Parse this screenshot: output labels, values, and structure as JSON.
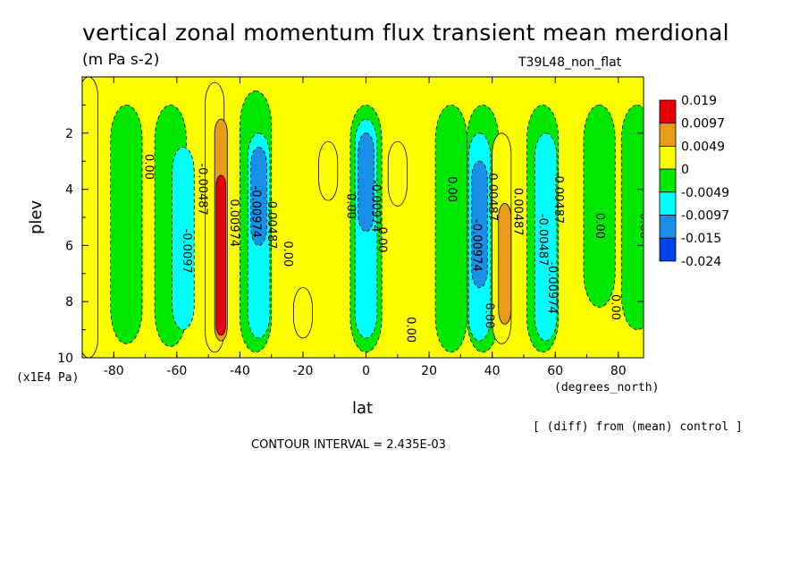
{
  "title": "vertical zonal momentum flux transient mean merdional",
  "units": "(m Pa s-2)",
  "run_id": "T39L48_non_flat",
  "y_axis_unit": "(x1E4 Pa)",
  "x_axis_unit": "(degrees_north)",
  "diff_note": "[ (diff) from (mean) control ]",
  "contour_interval": "CONTOUR INTERVAL = 2.435E-03",
  "chart_data": {
    "type": "heatmap",
    "title": "vertical zonal momentum flux transient mean merdional",
    "xlabel": "lat",
    "ylabel": "plev",
    "xlim": [
      -90,
      88
    ],
    "ylim": [
      10,
      0
    ],
    "x_ticks": [
      -80,
      -60,
      -40,
      -20,
      0,
      20,
      40,
      60,
      80
    ],
    "x_tick_labels": [
      "-80",
      "-60",
      "-40",
      "-20",
      "0",
      "20",
      "40",
      "60",
      "80"
    ],
    "y_ticks": [
      2,
      4,
      6,
      8,
      10
    ],
    "y_tick_labels": [
      "2",
      "4",
      "6",
      "8",
      "10"
    ],
    "legend": {
      "position": "right",
      "labels": [
        "0.019",
        "0.0097",
        "0.0049",
        "0",
        "-0.0049",
        "-0.0097",
        "-0.015",
        "-0.024"
      ],
      "colors": [
        "#e8000b",
        "#e89a1a",
        "#ffff00",
        "#00e800",
        "#00ffff",
        "#1a8fe8",
        "#0044e8"
      ]
    },
    "bands": [
      {
        "lat": -88,
        "top": 0.0,
        "bottom": 10,
        "value": "0"
      },
      {
        "lat": -76,
        "top": 1.0,
        "bottom": 9.5,
        "value": "-0.0049"
      },
      {
        "lat": -62,
        "top": 1.0,
        "bottom": 9.6,
        "value": "-0.0049"
      },
      {
        "lat": -58,
        "top": 2.5,
        "bottom": 9.0,
        "value": "-0.0097"
      },
      {
        "lat": -48,
        "top": 0.2,
        "bottom": 9.8,
        "value": "0.0049"
      },
      {
        "lat": -46,
        "top": 1.5,
        "bottom": 9.4,
        "value": "0.0097"
      },
      {
        "lat": -46,
        "top": 3.5,
        "bottom": 9.2,
        "value": "0.019"
      },
      {
        "lat": -35,
        "top": 0.5,
        "bottom": 9.8,
        "value": "-0.0049"
      },
      {
        "lat": -34,
        "top": 2.0,
        "bottom": 9.3,
        "value": "-0.0097"
      },
      {
        "lat": -34,
        "top": 2.5,
        "bottom": 6.0,
        "value": "-0.015"
      },
      {
        "lat": -12,
        "top": 2.3,
        "bottom": 4.4,
        "value": "0.0049"
      },
      {
        "lat": -20,
        "top": 7.5,
        "bottom": 9.3,
        "value": "0.0049"
      },
      {
        "lat": 0,
        "top": 1.0,
        "bottom": 9.8,
        "value": "-0.0049"
      },
      {
        "lat": 0,
        "top": 1.5,
        "bottom": 9.3,
        "value": "-0.0097"
      },
      {
        "lat": 0,
        "top": 2.0,
        "bottom": 5.5,
        "value": "-0.015"
      },
      {
        "lat": 10,
        "top": 2.3,
        "bottom": 4.6,
        "value": "0.0049"
      },
      {
        "lat": 27,
        "top": 1.0,
        "bottom": 9.8,
        "value": "-0.0049"
      },
      {
        "lat": 37,
        "top": 1.0,
        "bottom": 9.8,
        "value": "-0.0049"
      },
      {
        "lat": 36,
        "top": 2.0,
        "bottom": 9.4,
        "value": "-0.0097"
      },
      {
        "lat": 36,
        "top": 3.0,
        "bottom": 7.5,
        "value": "-0.015"
      },
      {
        "lat": 43,
        "top": 2.0,
        "bottom": 9.5,
        "value": "0.0049"
      },
      {
        "lat": 44,
        "top": 4.5,
        "bottom": 8.8,
        "value": "0.0097"
      },
      {
        "lat": 56,
        "top": 1.0,
        "bottom": 9.8,
        "value": "-0.0049"
      },
      {
        "lat": 57,
        "top": 2.0,
        "bottom": 9.4,
        "value": "-0.0097"
      },
      {
        "lat": 74,
        "top": 1.0,
        "bottom": 8.2,
        "value": "-0.0049"
      },
      {
        "lat": 86,
        "top": 1.0,
        "bottom": 9.0,
        "value": "-0.0049"
      }
    ],
    "contour_labels": [
      {
        "lat": -70,
        "plev": 3.2,
        "text": "0.00"
      },
      {
        "lat": -58,
        "plev": 6.2,
        "text": "-0.0097"
      },
      {
        "lat": -53,
        "plev": 4.0,
        "text": "-0.00487"
      },
      {
        "lat": -43,
        "plev": 5.2,
        "text": "0.00974"
      },
      {
        "lat": -36,
        "plev": 4.8,
        "text": "-0.00974"
      },
      {
        "lat": -31,
        "plev": 5.2,
        "text": "-0.00487"
      },
      {
        "lat": -26,
        "plev": 6.3,
        "text": "0.00"
      },
      {
        "lat": -6,
        "plev": 4.6,
        "text": "0.00"
      },
      {
        "lat": 2,
        "plev": 4.6,
        "text": "-0.00974"
      },
      {
        "lat": 4,
        "plev": 5.8,
        "text": "0.00"
      },
      {
        "lat": 13,
        "plev": 9.0,
        "text": "0.00"
      },
      {
        "lat": 26,
        "plev": 4.0,
        "text": "0.00"
      },
      {
        "lat": 34,
        "plev": 6.0,
        "text": "-0.00974"
      },
      {
        "lat": 39,
        "plev": 4.2,
        "text": "-0.00487"
      },
      {
        "lat": 38,
        "plev": 8.5,
        "text": "0.00"
      },
      {
        "lat": 47,
        "plev": 4.8,
        "text": "0.00487"
      },
      {
        "lat": 55,
        "plev": 5.8,
        "text": "-0.00487"
      },
      {
        "lat": 58,
        "plev": 7.5,
        "text": "-0.00974"
      },
      {
        "lat": 60,
        "plev": 4.3,
        "text": "-0.00487"
      },
      {
        "lat": 73,
        "plev": 5.3,
        "text": "0.00"
      },
      {
        "lat": 78,
        "plev": 8.2,
        "text": "0.00"
      },
      {
        "lat": 87,
        "plev": 5.3,
        "text": "0.00"
      }
    ]
  }
}
